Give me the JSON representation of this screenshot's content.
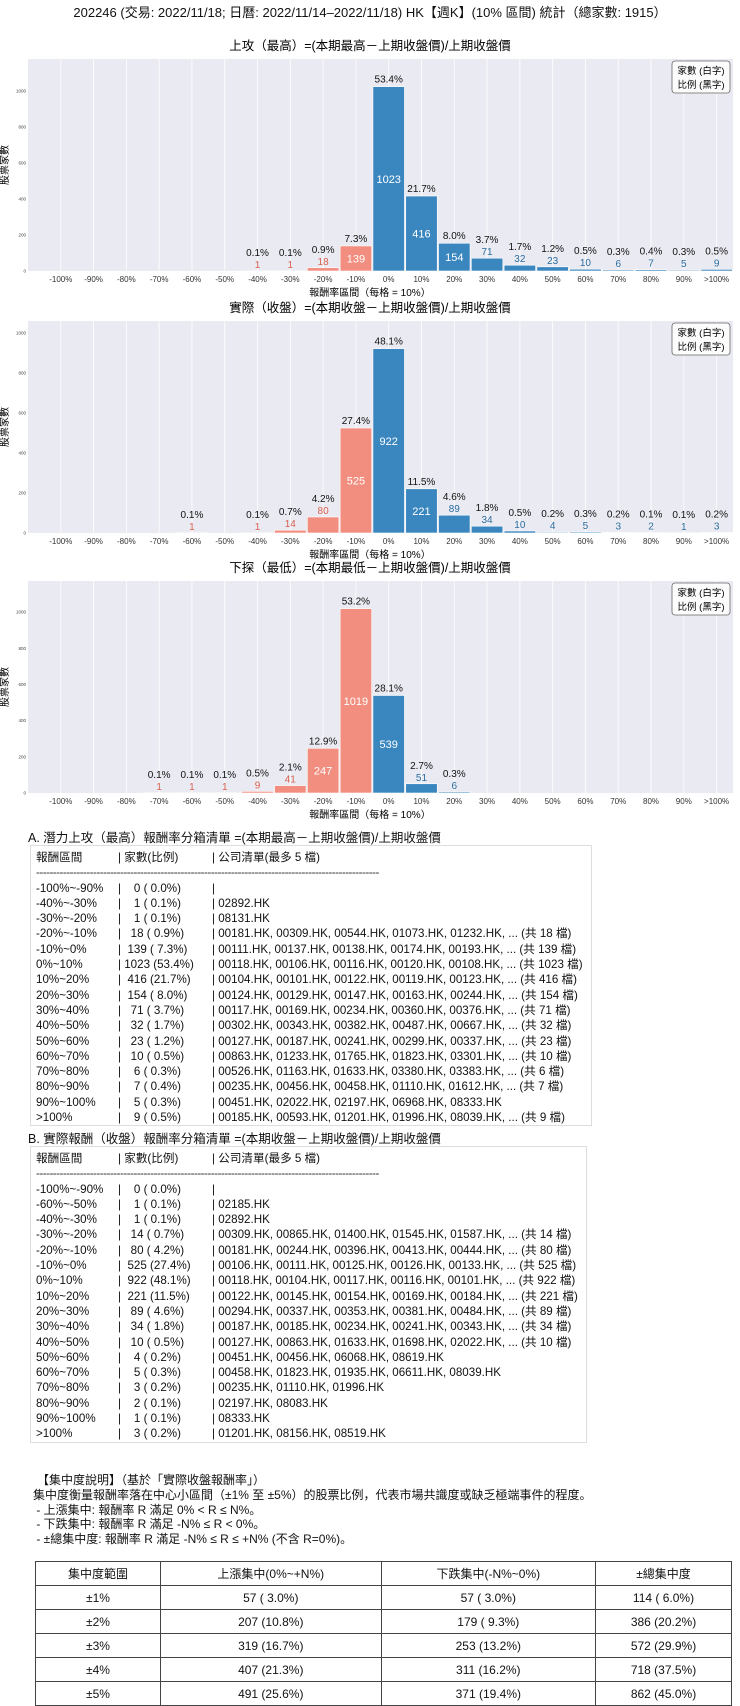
{
  "title": "202246 (交易: 2022/11/18; 日曆: 2022/11/14–2022/11/18) HK【週K】(10% 區間) 統計（總家數: 1915）",
  "colors": {
    "negative": "#f28e7f",
    "positive": "#3a86bf",
    "plot_bg": "#eaeaf2"
  },
  "chart_data": [
    {
      "type": "bar",
      "title": "上攻（最高）=(本期最高－上期收盤價)/上期收盤價",
      "xlabel": "報酬率區間（每格 = 10%）",
      "ylabel": "股票家數",
      "legend": [
        "家數 (白字)",
        "比例 (黑字)"
      ],
      "legend_position": "top-right",
      "grid": true,
      "yticks": [
        0,
        200,
        400,
        600,
        800,
        1000
      ],
      "categories": [
        "-100%",
        "-90%",
        "-80%",
        "-70%",
        "-60%",
        "-50%",
        "-40%",
        "-30%",
        "-20%",
        "-10%",
        "0%",
        "10%",
        "20%",
        "30%",
        "40%",
        "50%",
        "60%",
        "70%",
        "80%",
        "90%",
        ">100%"
      ],
      "values": [
        0,
        0,
        0,
        0,
        0,
        0,
        1,
        1,
        18,
        139,
        1023,
        416,
        154,
        71,
        32,
        23,
        10,
        6,
        7,
        5,
        9
      ],
      "percent_labels": [
        "",
        "",
        "",
        "",
        "",
        "",
        "0.1%",
        "0.1%",
        "0.9%",
        "7.3%",
        "53.4%",
        "21.7%",
        "8.0%",
        "3.7%",
        "1.7%",
        "1.2%",
        "0.5%",
        "0.3%",
        "0.4%",
        "0.3%",
        "0.5%"
      ]
    },
    {
      "type": "bar",
      "title": "實際（收盤）=(本期收盤－上期收盤價)/上期收盤價",
      "xlabel": "報酬率區間（每格 = 10%）",
      "ylabel": "股票家數",
      "legend": [
        "家數 (白字)",
        "比例 (黑字)"
      ],
      "legend_position": "top-right",
      "grid": true,
      "yticks": [
        0,
        200,
        400,
        600,
        800,
        1000
      ],
      "categories": [
        "-100%",
        "-90%",
        "-80%",
        "-70%",
        "-60%",
        "-50%",
        "-40%",
        "-30%",
        "-20%",
        "-10%",
        "0%",
        "10%",
        "20%",
        "30%",
        "40%",
        "50%",
        "60%",
        "70%",
        "80%",
        "90%",
        ">100%"
      ],
      "values": [
        0,
        0,
        0,
        0,
        1,
        0,
        1,
        14,
        80,
        525,
        922,
        221,
        89,
        34,
        10,
        4,
        5,
        3,
        2,
        1,
        3
      ],
      "percent_labels": [
        "",
        "",
        "",
        "",
        "0.1%",
        "",
        "0.1%",
        "0.7%",
        "4.2%",
        "27.4%",
        "48.1%",
        "11.5%",
        "4.6%",
        "1.8%",
        "0.5%",
        "0.2%",
        "0.3%",
        "0.2%",
        "0.1%",
        "0.1%",
        "0.2%"
      ]
    },
    {
      "type": "bar",
      "title": "下探（最低）=(本期最低－上期收盤價)/上期收盤價",
      "xlabel": "報酬率區間（每格 = 10%）",
      "ylabel": "股票家數",
      "legend": [
        "家數 (白字)",
        "比例 (黑字)"
      ],
      "legend_position": "top-right",
      "grid": true,
      "yticks": [
        0,
        200,
        400,
        600,
        800,
        1000
      ],
      "categories": [
        "-100%",
        "-90%",
        "-80%",
        "-70%",
        "-60%",
        "-50%",
        "-40%",
        "-30%",
        "-20%",
        "-10%",
        "0%",
        "10%",
        "20%",
        "30%",
        "40%",
        "50%",
        "60%",
        "70%",
        "80%",
        "90%",
        ">100%"
      ],
      "values": [
        0,
        0,
        0,
        1,
        1,
        1,
        9,
        41,
        247,
        1019,
        539,
        51,
        6,
        0,
        0,
        0,
        0,
        0,
        0,
        0,
        0
      ],
      "percent_labels": [
        "",
        "",
        "",
        "0.1%",
        "0.1%",
        "0.1%",
        "0.5%",
        "2.1%",
        "12.9%",
        "53.2%",
        "28.1%",
        "2.7%",
        "0.3%",
        "",
        "",
        "",
        "",
        "",
        "",
        "",
        ""
      ]
    }
  ],
  "list_a": {
    "title": "A. 潛力上攻（最高）報酬率分箱清單 =(本期最高－上期收盤價)/上期收盤價",
    "header": {
      "range": "報酬區間",
      "count": "| 家數(比例)",
      "companies": "| 公司清單(最多 5 檔)"
    },
    "divider": "------------------------------------------------------------------------------------------------------",
    "rows": [
      {
        "range": "-100%~-90%",
        "count": "|    0 ( 0.0%)",
        "companies": "|"
      },
      {
        "range": "-40%~-30%",
        "count": "|    1 ( 0.1%)",
        "companies": "| 02892.HK"
      },
      {
        "range": "-30%~-20%",
        "count": "|    1 ( 0.1%)",
        "companies": "| 08131.HK"
      },
      {
        "range": "-20%~-10%",
        "count": "|   18 ( 0.9%)",
        "companies": "| 00181.HK, 00309.HK, 00544.HK, 01073.HK, 01232.HK, ... (共 18 檔)"
      },
      {
        "range": "-10%~0%",
        "count": "|  139 ( 7.3%)",
        "companies": "| 00111.HK, 00137.HK, 00138.HK, 00174.HK, 00193.HK, ... (共 139 檔)"
      },
      {
        "range": "0%~10%",
        "count": "| 1023 (53.4%)",
        "companies": "| 00118.HK, 00106.HK, 00116.HK, 00120.HK, 00108.HK, ... (共 1023 檔)"
      },
      {
        "range": "10%~20%",
        "count": "|  416 (21.7%)",
        "companies": "| 00104.HK, 00101.HK, 00122.HK, 00119.HK, 00123.HK, ... (共 416 檔)"
      },
      {
        "range": "20%~30%",
        "count": "|  154 ( 8.0%)",
        "companies": "| 00124.HK, 00129.HK, 00147.HK, 00163.HK, 00244.HK, ... (共 154 檔)"
      },
      {
        "range": "30%~40%",
        "count": "|   71 ( 3.7%)",
        "companies": "| 00117.HK, 00169.HK, 00234.HK, 00360.HK, 00376.HK, ... (共 71 檔)"
      },
      {
        "range": "40%~50%",
        "count": "|   32 ( 1.7%)",
        "companies": "| 00302.HK, 00343.HK, 00382.HK, 00487.HK, 00667.HK, ... (共 32 檔)"
      },
      {
        "range": "50%~60%",
        "count": "|   23 ( 1.2%)",
        "companies": "| 00127.HK, 00187.HK, 00241.HK, 00299.HK, 00337.HK, ... (共 23 檔)"
      },
      {
        "range": "60%~70%",
        "count": "|   10 ( 0.5%)",
        "companies": "| 00863.HK, 01233.HK, 01765.HK, 01823.HK, 03301.HK, ... (共 10 檔)"
      },
      {
        "range": "70%~80%",
        "count": "|    6 ( 0.3%)",
        "companies": "| 00526.HK, 01163.HK, 01633.HK, 03380.HK, 03383.HK, ... (共 6 檔)"
      },
      {
        "range": "80%~90%",
        "count": "|    7 ( 0.4%)",
        "companies": "| 00235.HK, 00456.HK, 00458.HK, 01110.HK, 01612.HK, ... (共 7 檔)"
      },
      {
        "range": "90%~100%",
        "count": "|    5 ( 0.3%)",
        "companies": "| 00451.HK, 02022.HK, 02197.HK, 06968.HK, 08333.HK"
      },
      {
        "range": ">100%",
        "count": "|    9 ( 0.5%)",
        "companies": "| 00185.HK, 00593.HK, 01201.HK, 01996.HK, 08039.HK, ... (共 9 檔)"
      }
    ]
  },
  "list_b": {
    "title": "B. 實際報酬（收盤）報酬率分箱清單 =(本期收盤－上期收盤價)/上期收盤價",
    "header": {
      "range": "報酬區間",
      "count": "| 家數(比例)",
      "companies": "| 公司清單(最多 5 檔)"
    },
    "divider": "------------------------------------------------------------------------------------------------------",
    "rows": [
      {
        "range": "-100%~-90%",
        "count": "|    0 ( 0.0%)",
        "companies": "|"
      },
      {
        "range": "-60%~-50%",
        "count": "|    1 ( 0.1%)",
        "companies": "| 02185.HK"
      },
      {
        "range": "-40%~-30%",
        "count": "|    1 ( 0.1%)",
        "companies": "| 02892.HK"
      },
      {
        "range": "-30%~-20%",
        "count": "|   14 ( 0.7%)",
        "companies": "| 00309.HK, 00865.HK, 01400.HK, 01545.HK, 01587.HK, ... (共 14 檔)"
      },
      {
        "range": "-20%~-10%",
        "count": "|   80 ( 4.2%)",
        "companies": "| 00181.HK, 00244.HK, 00396.HK, 00413.HK, 00444.HK, ... (共 80 檔)"
      },
      {
        "range": "-10%~0%",
        "count": "|  525 (27.4%)",
        "companies": "| 00106.HK, 00111.HK, 00125.HK, 00126.HK, 00133.HK, ... (共 525 檔)"
      },
      {
        "range": "0%~10%",
        "count": "|  922 (48.1%)",
        "companies": "| 00118.HK, 00104.HK, 00117.HK, 00116.HK, 00101.HK, ... (共 922 檔)"
      },
      {
        "range": "10%~20%",
        "count": "|  221 (11.5%)",
        "companies": "| 00122.HK, 00145.HK, 00154.HK, 00169.HK, 00184.HK, ... (共 221 檔)"
      },
      {
        "range": "20%~30%",
        "count": "|   89 ( 4.6%)",
        "companies": "| 00294.HK, 00337.HK, 00353.HK, 00381.HK, 00484.HK, ... (共 89 檔)"
      },
      {
        "range": "30%~40%",
        "count": "|   34 ( 1.8%)",
        "companies": "| 00187.HK, 00185.HK, 00234.HK, 00241.HK, 00343.HK, ... (共 34 檔)"
      },
      {
        "range": "40%~50%",
        "count": "|   10 ( 0.5%)",
        "companies": "| 00127.HK, 00863.HK, 01633.HK, 01698.HK, 02022.HK, ... (共 10 檔)"
      },
      {
        "range": "50%~60%",
        "count": "|    4 ( 0.2%)",
        "companies": "| 00451.HK, 00456.HK, 06068.HK, 08619.HK"
      },
      {
        "range": "60%~70%",
        "count": "|    5 ( 0.3%)",
        "companies": "| 00458.HK, 01823.HK, 01935.HK, 06611.HK, 08039.HK"
      },
      {
        "range": "70%~80%",
        "count": "|    3 ( 0.2%)",
        "companies": "| 00235.HK, 01110.HK, 01996.HK"
      },
      {
        "range": "80%~90%",
        "count": "|    2 ( 0.1%)",
        "companies": "| 02197.HK, 08083.HK"
      },
      {
        "range": "90%~100%",
        "count": "|    1 ( 0.1%)",
        "companies": "| 08333.HK"
      },
      {
        "range": ">100%",
        "count": "|    3 ( 0.2%)",
        "companies": "| 01201.HK, 08156.HK, 08519.HK"
      }
    ]
  },
  "concentration": {
    "lines": [
      "【集中度說明】（基於「實際收盤報酬率」）",
      "集中度衡量報酬率落在中心小區間（±1% 至 ±5%）的股票比例，代表市場共識度或缺乏極端事件的程度。",
      " - 上漲集中: 報酬率 R 滿足 0% < R ≤ N%。",
      " - 下跌集中: 報酬率 R 滿足 -N% ≤ R < 0%。",
      " - ±總集中度: 報酬率 R 滿足 -N% ≤ R ≤ +N% (不含 R=0%)。"
    ],
    "table": {
      "headers": [
        "集中度範圍",
        "上漲集中(0%~+N%)",
        "下跌集中(-N%~0%)",
        "±總集中度"
      ],
      "rows": [
        [
          "±1%",
          "57 ( 3.0%)",
          "57 ( 3.0%)",
          "114 ( 6.0%)"
        ],
        [
          "±2%",
          "207 (10.8%)",
          "179 ( 9.3%)",
          "386 (20.2%)"
        ],
        [
          "±3%",
          "319 (16.7%)",
          "253 (13.2%)",
          "572 (29.9%)"
        ],
        [
          "±4%",
          "407 (21.3%)",
          "311 (16.2%)",
          "718 (37.5%)"
        ],
        [
          "±5%",
          "491 (25.6%)",
          "371 (19.4%)",
          "862 (45.0%)"
        ]
      ]
    }
  }
}
